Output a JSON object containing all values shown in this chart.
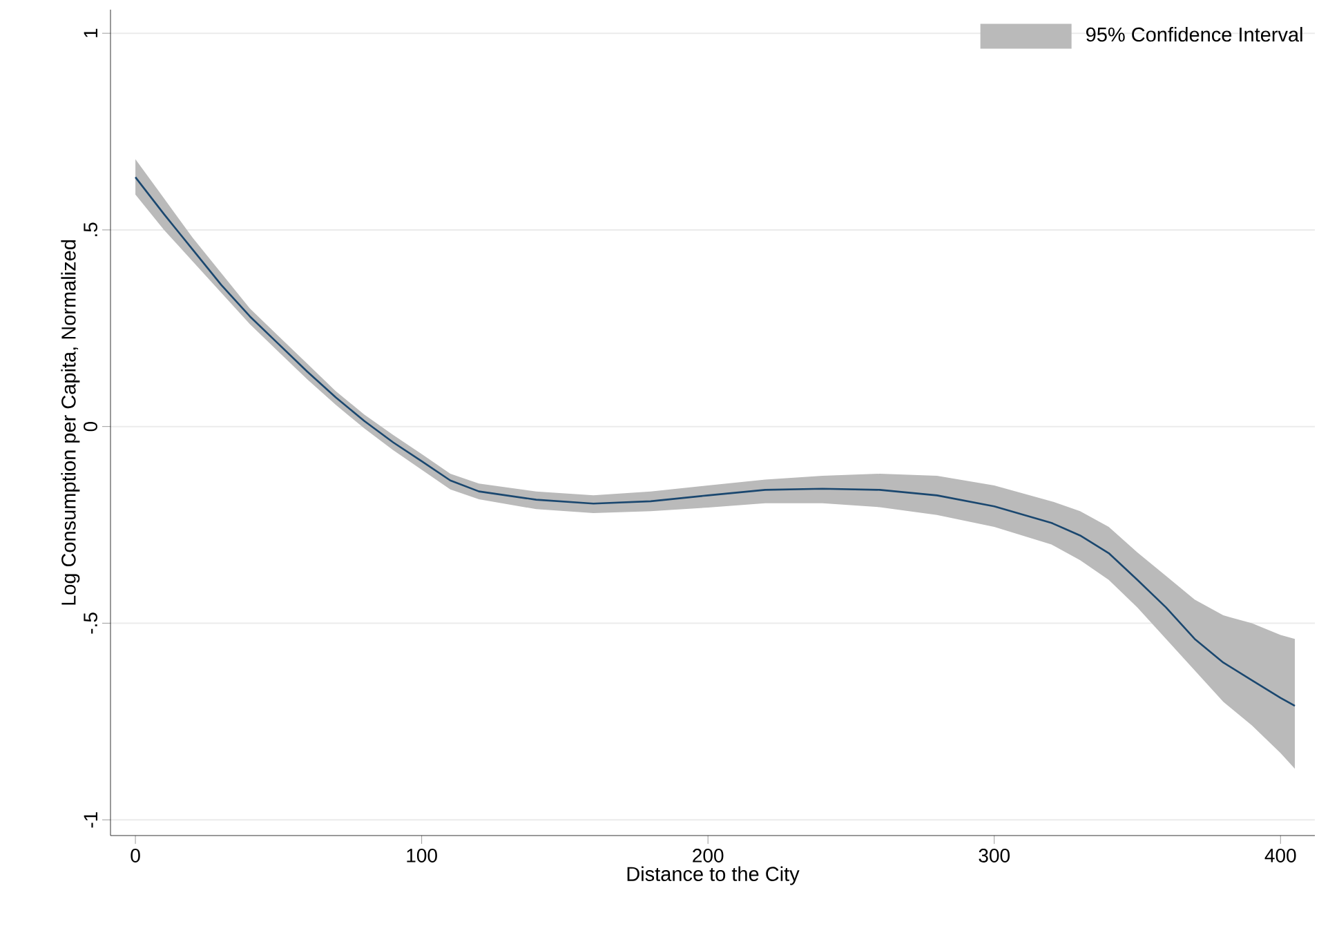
{
  "chart_data": {
    "type": "line",
    "xlabel": "Distance to the City",
    "ylabel": "Log Consumption per Capita, Normalized",
    "x": [
      0,
      10,
      20,
      30,
      40,
      50,
      60,
      70,
      80,
      90,
      100,
      110,
      120,
      140,
      160,
      180,
      200,
      220,
      240,
      260,
      280,
      300,
      320,
      330,
      340,
      350,
      360,
      370,
      380,
      390,
      400,
      405
    ],
    "series": [
      {
        "name": "95% Confidence Interval",
        "color": "#1a476f",
        "values": [
          0.634,
          0.54,
          0.45,
          0.36,
          0.28,
          0.21,
          0.14,
          0.074,
          0.014,
          -0.04,
          -0.088,
          -0.137,
          -0.165,
          -0.186,
          -0.196,
          -0.19,
          -0.175,
          -0.161,
          -0.158,
          -0.161,
          -0.175,
          -0.203,
          -0.245,
          -0.277,
          -0.322,
          -0.39,
          -0.46,
          -0.54,
          -0.6,
          -0.645,
          -0.69,
          -0.71
        ],
        "lower": [
          0.59,
          0.5,
          0.42,
          0.34,
          0.26,
          0.19,
          0.12,
          0.055,
          -0.005,
          -0.06,
          -0.11,
          -0.16,
          -0.185,
          -0.21,
          -0.22,
          -0.215,
          -0.206,
          -0.195,
          -0.195,
          -0.205,
          -0.225,
          -0.255,
          -0.3,
          -0.34,
          -0.39,
          -0.46,
          -0.54,
          -0.62,
          -0.7,
          -0.76,
          -0.83,
          -0.87
        ],
        "upper": [
          0.68,
          0.58,
          0.48,
          0.39,
          0.3,
          0.23,
          0.16,
          0.09,
          0.03,
          -0.021,
          -0.07,
          -0.12,
          -0.145,
          -0.165,
          -0.175,
          -0.165,
          -0.15,
          -0.135,
          -0.125,
          -0.12,
          -0.125,
          -0.15,
          -0.19,
          -0.215,
          -0.255,
          -0.32,
          -0.38,
          -0.44,
          -0.48,
          -0.5,
          -0.53,
          -0.54
        ]
      }
    ],
    "xlim": [
      -8.7,
      412
    ],
    "ylim": [
      -1.04,
      1.06
    ],
    "xticks": [
      0,
      100,
      200,
      300,
      400
    ],
    "yticks": [
      {
        "value": -1,
        "label": "-1"
      },
      {
        "value": -0.5,
        "label": "-.5"
      },
      {
        "value": 0,
        "label": "0"
      },
      {
        "value": 0.5,
        "label": ".5"
      },
      {
        "value": 1,
        "label": "1"
      }
    ],
    "grid": "y",
    "legend": "top right",
    "line_style": "solid",
    "marker": "none"
  }
}
